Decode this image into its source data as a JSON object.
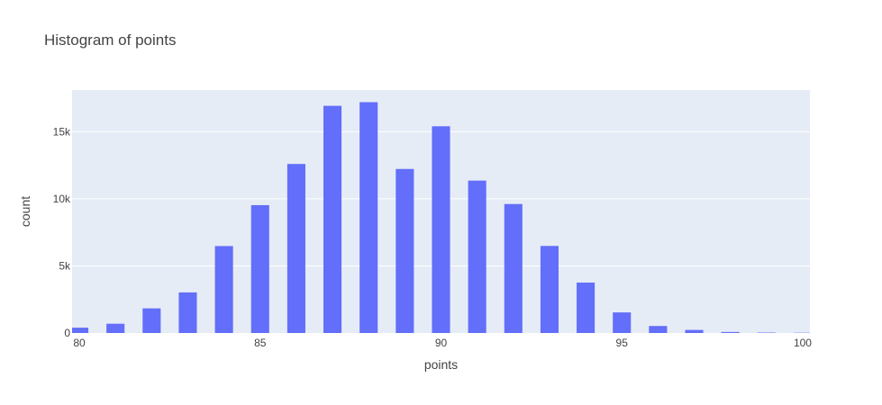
{
  "chart_data": {
    "type": "bar",
    "title": "Histogram of points",
    "xlabel": "points",
    "ylabel": "count",
    "x": [
      80,
      81,
      82,
      83,
      84,
      85,
      86,
      87,
      88,
      89,
      90,
      91,
      92,
      93,
      94,
      95,
      96,
      97,
      98,
      99,
      100
    ],
    "values": [
      397,
      692,
      1836,
      3025,
      6480,
      9530,
      12600,
      16933,
      17207,
      12226,
      15410,
      11360,
      9613,
      6489,
      3758,
      1535,
      523,
      229,
      77,
      33,
      19
    ],
    "xlim": [
      79.8,
      100.2
    ],
    "ylim": [
      0,
      18113
    ],
    "xticks": [
      80,
      85,
      90,
      95,
      100
    ],
    "xtick_labels": [
      "80",
      "85",
      "90",
      "95",
      "100"
    ],
    "yticks": [
      0,
      5000,
      10000,
      15000
    ],
    "ytick_labels": [
      "0",
      "5k",
      "10k",
      "15k"
    ],
    "bar_color": "#636efa",
    "plot_background": "#e5ecf6",
    "grid": true,
    "legend": "none"
  }
}
